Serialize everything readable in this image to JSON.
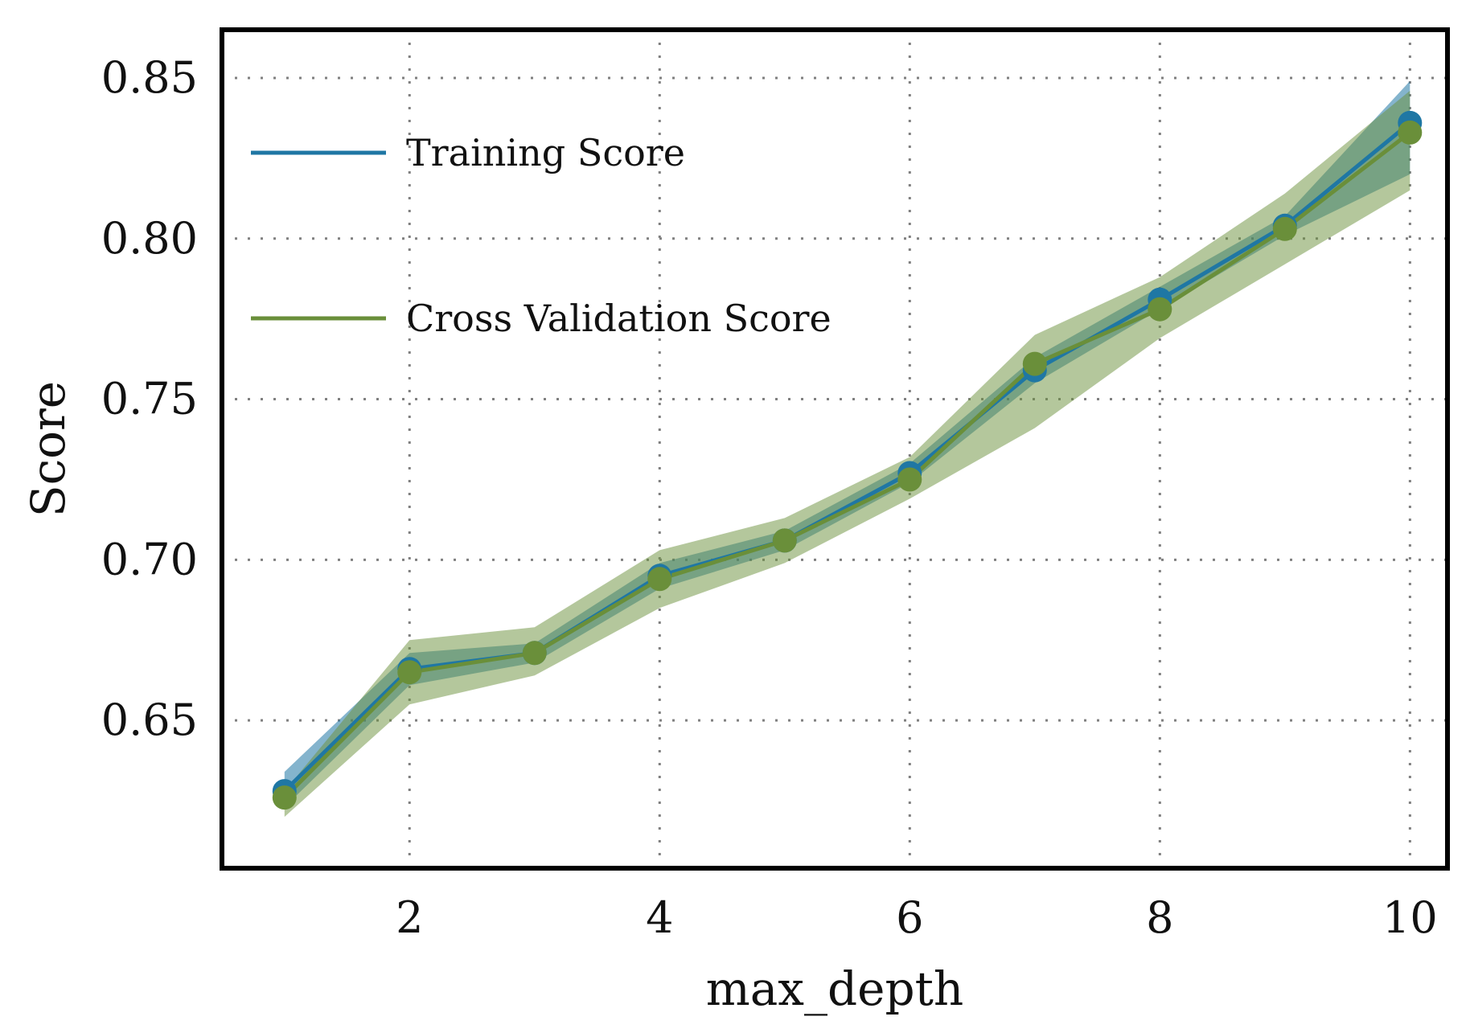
{
  "chart_data": {
    "type": "line",
    "title": "",
    "xlabel": "max_depth",
    "ylabel": "Score",
    "x": [
      1,
      2,
      3,
      4,
      5,
      6,
      7,
      8,
      9,
      10
    ],
    "xlim": [
      0.5,
      10.3
    ],
    "ylim": [
      0.604,
      0.865
    ],
    "xticks": [
      2,
      4,
      6,
      8,
      10
    ],
    "xtick_labels": [
      "2",
      "4",
      "6",
      "8",
      "10"
    ],
    "yticks": [
      0.65,
      0.7,
      0.75,
      0.8,
      0.85
    ],
    "ytick_labels": [
      "0.65",
      "0.70",
      "0.75",
      "0.80",
      "0.85"
    ],
    "grid": true,
    "legend": "upper-left",
    "series": [
      {
        "name": "Training Score",
        "color": "#1f77a4",
        "values": [
          0.628,
          0.666,
          0.671,
          0.695,
          0.706,
          0.727,
          0.759,
          0.781,
          0.804,
          0.836
        ],
        "lower": [
          0.623,
          0.661,
          0.668,
          0.691,
          0.703,
          0.724,
          0.755,
          0.778,
          0.801,
          0.82
        ],
        "upper": [
          0.634,
          0.671,
          0.674,
          0.699,
          0.709,
          0.73,
          0.763,
          0.785,
          0.807,
          0.849
        ]
      },
      {
        "name": "Cross Validation Score",
        "color": "#6a8f3a",
        "values": [
          0.626,
          0.665,
          0.671,
          0.694,
          0.706,
          0.725,
          0.761,
          0.778,
          0.803,
          0.833
        ],
        "lower": [
          0.62,
          0.655,
          0.664,
          0.685,
          0.699,
          0.719,
          0.741,
          0.769,
          0.792,
          0.815
        ],
        "upper": [
          0.628,
          0.675,
          0.679,
          0.703,
          0.713,
          0.732,
          0.77,
          0.788,
          0.814,
          0.846
        ]
      }
    ]
  }
}
